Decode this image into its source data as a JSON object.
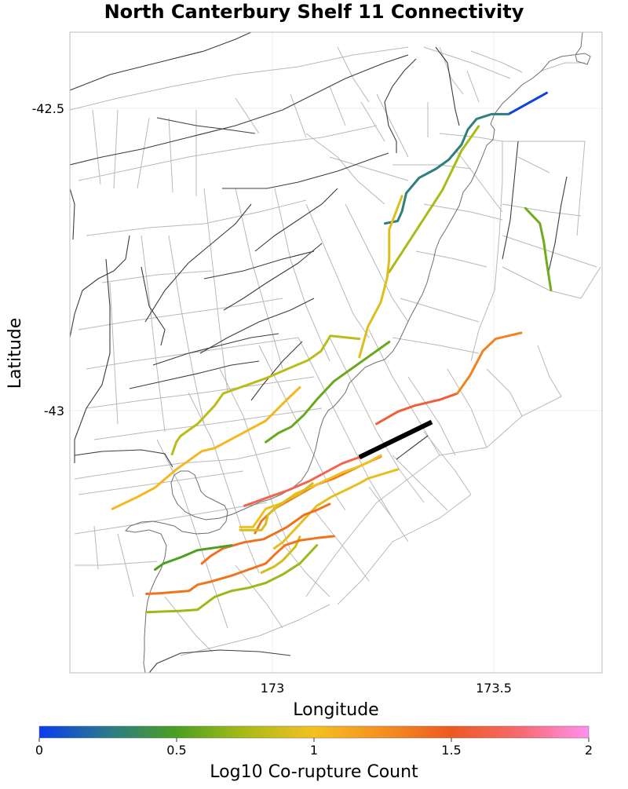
{
  "chart_data": {
    "type": "map",
    "title": "North Canterbury Shelf 11 Connectivity",
    "xlabel": "Longitude",
    "ylabel": "Latitude",
    "xlim": [
      172.52,
      173.77
    ],
    "ylim": [
      -43.43,
      -42.375
    ],
    "xticks": [
      {
        "value": 173,
        "label": "173"
      },
      {
        "value": 173.5,
        "label": "173.5"
      }
    ],
    "yticks": [
      {
        "value": -42.5,
        "label": "-42.5"
      },
      {
        "value": -43,
        "label": "-43"
      }
    ],
    "colorbar": {
      "label": "Log10 Co-rupture Count",
      "range": [
        0,
        2
      ],
      "ticks": [
        {
          "value": 0,
          "label": "0"
        },
        {
          "value": 0.5,
          "label": "0.5"
        },
        {
          "value": 1,
          "label": "1"
        },
        {
          "value": 1.5,
          "label": "1.5"
        },
        {
          "value": 2,
          "label": "2"
        }
      ],
      "stops": [
        {
          "value": 0,
          "color": "#0a3cf0"
        },
        {
          "value": 0.25,
          "color": "#2a7a8a"
        },
        {
          "value": 0.5,
          "color": "#4ba020"
        },
        {
          "value": 0.75,
          "color": "#aabb18"
        },
        {
          "value": 1.0,
          "color": "#f5c020"
        },
        {
          "value": 1.25,
          "color": "#f59020"
        },
        {
          "value": 1.5,
          "color": "#ec5a20"
        },
        {
          "value": 1.75,
          "color": "#f86a70"
        },
        {
          "value": 2.0,
          "color": "#ff90ee"
        }
      ]
    },
    "target_section": {
      "name": "North Canterbury Shelf 11",
      "color": "#000000",
      "points": [
        [
          173.2,
          -43.075
        ],
        [
          173.37,
          -43.017
        ]
      ]
    },
    "colored_sections": [
      {
        "value": 0.02,
        "points": [
          [
            173.55,
            -42.51
          ],
          [
            173.64,
            -42.475
          ]
        ]
      },
      {
        "value": 0.28,
        "points": [
          [
            173.26,
            -42.69
          ],
          [
            173.29,
            -42.686
          ],
          [
            173.3,
            -42.67
          ],
          [
            173.31,
            -42.64
          ],
          [
            173.34,
            -42.615
          ],
          [
            173.38,
            -42.6
          ],
          [
            173.41,
            -42.585
          ],
          [
            173.44,
            -42.56
          ],
          [
            173.455,
            -42.535
          ],
          [
            173.475,
            -42.518
          ],
          [
            173.51,
            -42.51
          ],
          [
            173.55,
            -42.51
          ]
        ]
      },
      {
        "value": 0.75,
        "points": [
          [
            173.27,
            -42.77
          ],
          [
            173.395,
            -42.635
          ],
          [
            173.44,
            -42.57
          ],
          [
            173.48,
            -42.53
          ]
        ]
      },
      {
        "value": 0.6,
        "points": [
          [
            173.59,
            -42.665
          ],
          [
            173.624,
            -42.69
          ],
          [
            173.633,
            -42.72
          ],
          [
            173.64,
            -42.755
          ],
          [
            173.65,
            -42.8
          ]
        ]
      },
      {
        "value": 0.92,
        "points": [
          [
            173.3,
            -42.645
          ],
          [
            173.27,
            -42.7
          ],
          [
            173.27,
            -42.75
          ],
          [
            173.265,
            -42.78
          ],
          [
            173.25,
            -42.82
          ],
          [
            173.22,
            -42.86
          ],
          [
            173.2,
            -42.91
          ]
        ]
      },
      {
        "value": 0.8,
        "points": [
          [
            172.76,
            -43.07
          ],
          [
            172.77,
            -43.05
          ],
          [
            172.78,
            -43.04
          ],
          [
            172.82,
            -43.02
          ],
          [
            172.86,
            -42.99
          ],
          [
            172.88,
            -42.97
          ],
          [
            172.92,
            -42.96
          ],
          [
            172.98,
            -42.945
          ],
          [
            173.03,
            -42.93
          ],
          [
            173.08,
            -42.915
          ],
          [
            173.11,
            -42.9
          ],
          [
            173.132,
            -42.875
          ],
          [
            173.2,
            -42.88
          ]
        ]
      },
      {
        "value": 0.58,
        "points": [
          [
            173.27,
            -42.885
          ],
          [
            173.14,
            -42.95
          ],
          [
            173.1,
            -42.98
          ],
          [
            173.07,
            -43.005
          ],
          [
            173.04,
            -43.025
          ],
          [
            173.01,
            -43.035
          ],
          [
            172.98,
            -43.05
          ]
        ]
      },
      {
        "value": 1.05,
        "points": [
          [
            172.62,
            -43.16
          ],
          [
            172.68,
            -43.14
          ],
          [
            172.72,
            -43.125
          ],
          [
            172.77,
            -43.095
          ],
          [
            172.8,
            -43.08
          ],
          [
            172.83,
            -43.065
          ],
          [
            172.86,
            -43.06
          ],
          [
            172.9,
            -43.045
          ],
          [
            172.94,
            -43.03
          ],
          [
            172.98,
            -43.015
          ],
          [
            173.03,
            -42.98
          ],
          [
            173.06,
            -42.96
          ]
        ]
      },
      {
        "value": 1.58,
        "points": [
          [
            173.24,
            -43.02
          ],
          [
            173.29,
            -43.0
          ],
          [
            173.33,
            -42.99
          ],
          [
            173.39,
            -42.98
          ],
          [
            173.43,
            -42.97
          ]
        ]
      },
      {
        "value": 1.32,
        "points": [
          [
            173.43,
            -42.97
          ],
          [
            173.46,
            -42.94
          ],
          [
            173.49,
            -42.9
          ],
          [
            173.52,
            -42.88
          ],
          [
            173.58,
            -42.87
          ]
        ]
      },
      {
        "value": 1.65,
        "points": [
          [
            172.93,
            -43.155
          ],
          [
            172.99,
            -43.14
          ],
          [
            173.03,
            -43.13
          ],
          [
            173.08,
            -43.115
          ],
          [
            173.12,
            -43.1
          ],
          [
            173.16,
            -43.085
          ],
          [
            173.2,
            -43.075
          ]
        ]
      },
      {
        "value": 1.35,
        "points": [
          [
            173.25,
            -43.074
          ],
          [
            173.2,
            -43.09
          ],
          [
            173.14,
            -43.11
          ],
          [
            173.1,
            -43.12
          ],
          [
            173.05,
            -43.14
          ],
          [
            173.0,
            -43.16
          ],
          [
            172.97,
            -43.18
          ],
          [
            172.955,
            -43.2
          ]
        ]
      },
      {
        "value": 0.98,
        "points": [
          [
            172.92,
            -43.19
          ],
          [
            172.95,
            -43.19
          ],
          [
            172.96,
            -43.18
          ],
          [
            172.98,
            -43.16
          ],
          [
            173.02,
            -43.15
          ],
          [
            173.05,
            -43.135
          ],
          [
            173.1,
            -43.12
          ],
          [
            173.16,
            -43.1
          ],
          [
            173.2,
            -43.09
          ],
          [
            173.23,
            -43.08
          ],
          [
            173.25,
            -43.072
          ]
        ]
      },
      {
        "value": 0.9,
        "points": [
          [
            172.92,
            -43.195
          ],
          [
            172.97,
            -43.195
          ],
          [
            172.98,
            -43.185
          ],
          [
            172.985,
            -43.17
          ],
          [
            173.01,
            -43.155
          ],
          [
            173.03,
            -43.145
          ],
          [
            173.06,
            -43.135
          ],
          [
            173.09,
            -43.118
          ]
        ]
      },
      {
        "value": 0.95,
        "points": [
          [
            173.0,
            -43.225
          ],
          [
            173.02,
            -43.215
          ],
          [
            173.04,
            -43.2
          ],
          [
            173.06,
            -43.185
          ],
          [
            173.08,
            -43.17
          ],
          [
            173.1,
            -43.155
          ],
          [
            173.135,
            -43.14
          ],
          [
            173.165,
            -43.13
          ],
          [
            173.2,
            -43.118
          ],
          [
            173.22,
            -43.11
          ],
          [
            173.29,
            -43.095
          ]
        ]
      },
      {
        "value": 1.4,
        "points": [
          [
            172.83,
            -43.25
          ],
          [
            172.85,
            -43.238
          ],
          [
            172.88,
            -43.225
          ],
          [
            172.93,
            -43.215
          ],
          [
            172.975,
            -43.21
          ],
          [
            173.03,
            -43.19
          ],
          [
            173.07,
            -43.17
          ],
          [
            173.1,
            -43.162
          ],
          [
            173.13,
            -43.152
          ]
        ]
      },
      {
        "value": 0.88,
        "points": [
          [
            172.97,
            -43.265
          ],
          [
            173.0,
            -43.255
          ],
          [
            173.02,
            -43.245
          ],
          [
            173.05,
            -43.222
          ],
          [
            173.06,
            -43.206
          ]
        ]
      },
      {
        "value": 1.38,
        "points": [
          [
            172.7,
            -43.3
          ],
          [
            172.73,
            -43.299
          ],
          [
            172.8,
            -43.295
          ],
          [
            172.82,
            -43.285
          ],
          [
            172.85,
            -43.28
          ],
          [
            172.9,
            -43.27
          ],
          [
            172.94,
            -43.26
          ],
          [
            172.98,
            -43.25
          ],
          [
            173.0,
            -43.236
          ],
          [
            173.025,
            -43.22
          ],
          [
            173.06,
            -43.212
          ],
          [
            173.1,
            -43.208
          ],
          [
            173.14,
            -43.205
          ]
        ]
      },
      {
        "value": 0.5,
        "points": [
          [
            172.72,
            -43.26
          ],
          [
            172.74,
            -43.25
          ],
          [
            172.78,
            -43.24
          ],
          [
            172.82,
            -43.228
          ],
          [
            172.86,
            -43.224
          ],
          [
            172.9,
            -43.22
          ]
        ]
      },
      {
        "value": 0.72,
        "points": [
          [
            172.7,
            -43.33
          ],
          [
            172.78,
            -43.328
          ],
          [
            172.82,
            -43.326
          ],
          [
            172.86,
            -43.305
          ],
          [
            172.9,
            -43.295
          ],
          [
            172.94,
            -43.29
          ],
          [
            172.98,
            -43.282
          ],
          [
            173.02,
            -43.268
          ],
          [
            173.06,
            -43.25
          ],
          [
            173.1,
            -43.22
          ]
        ]
      }
    ]
  }
}
